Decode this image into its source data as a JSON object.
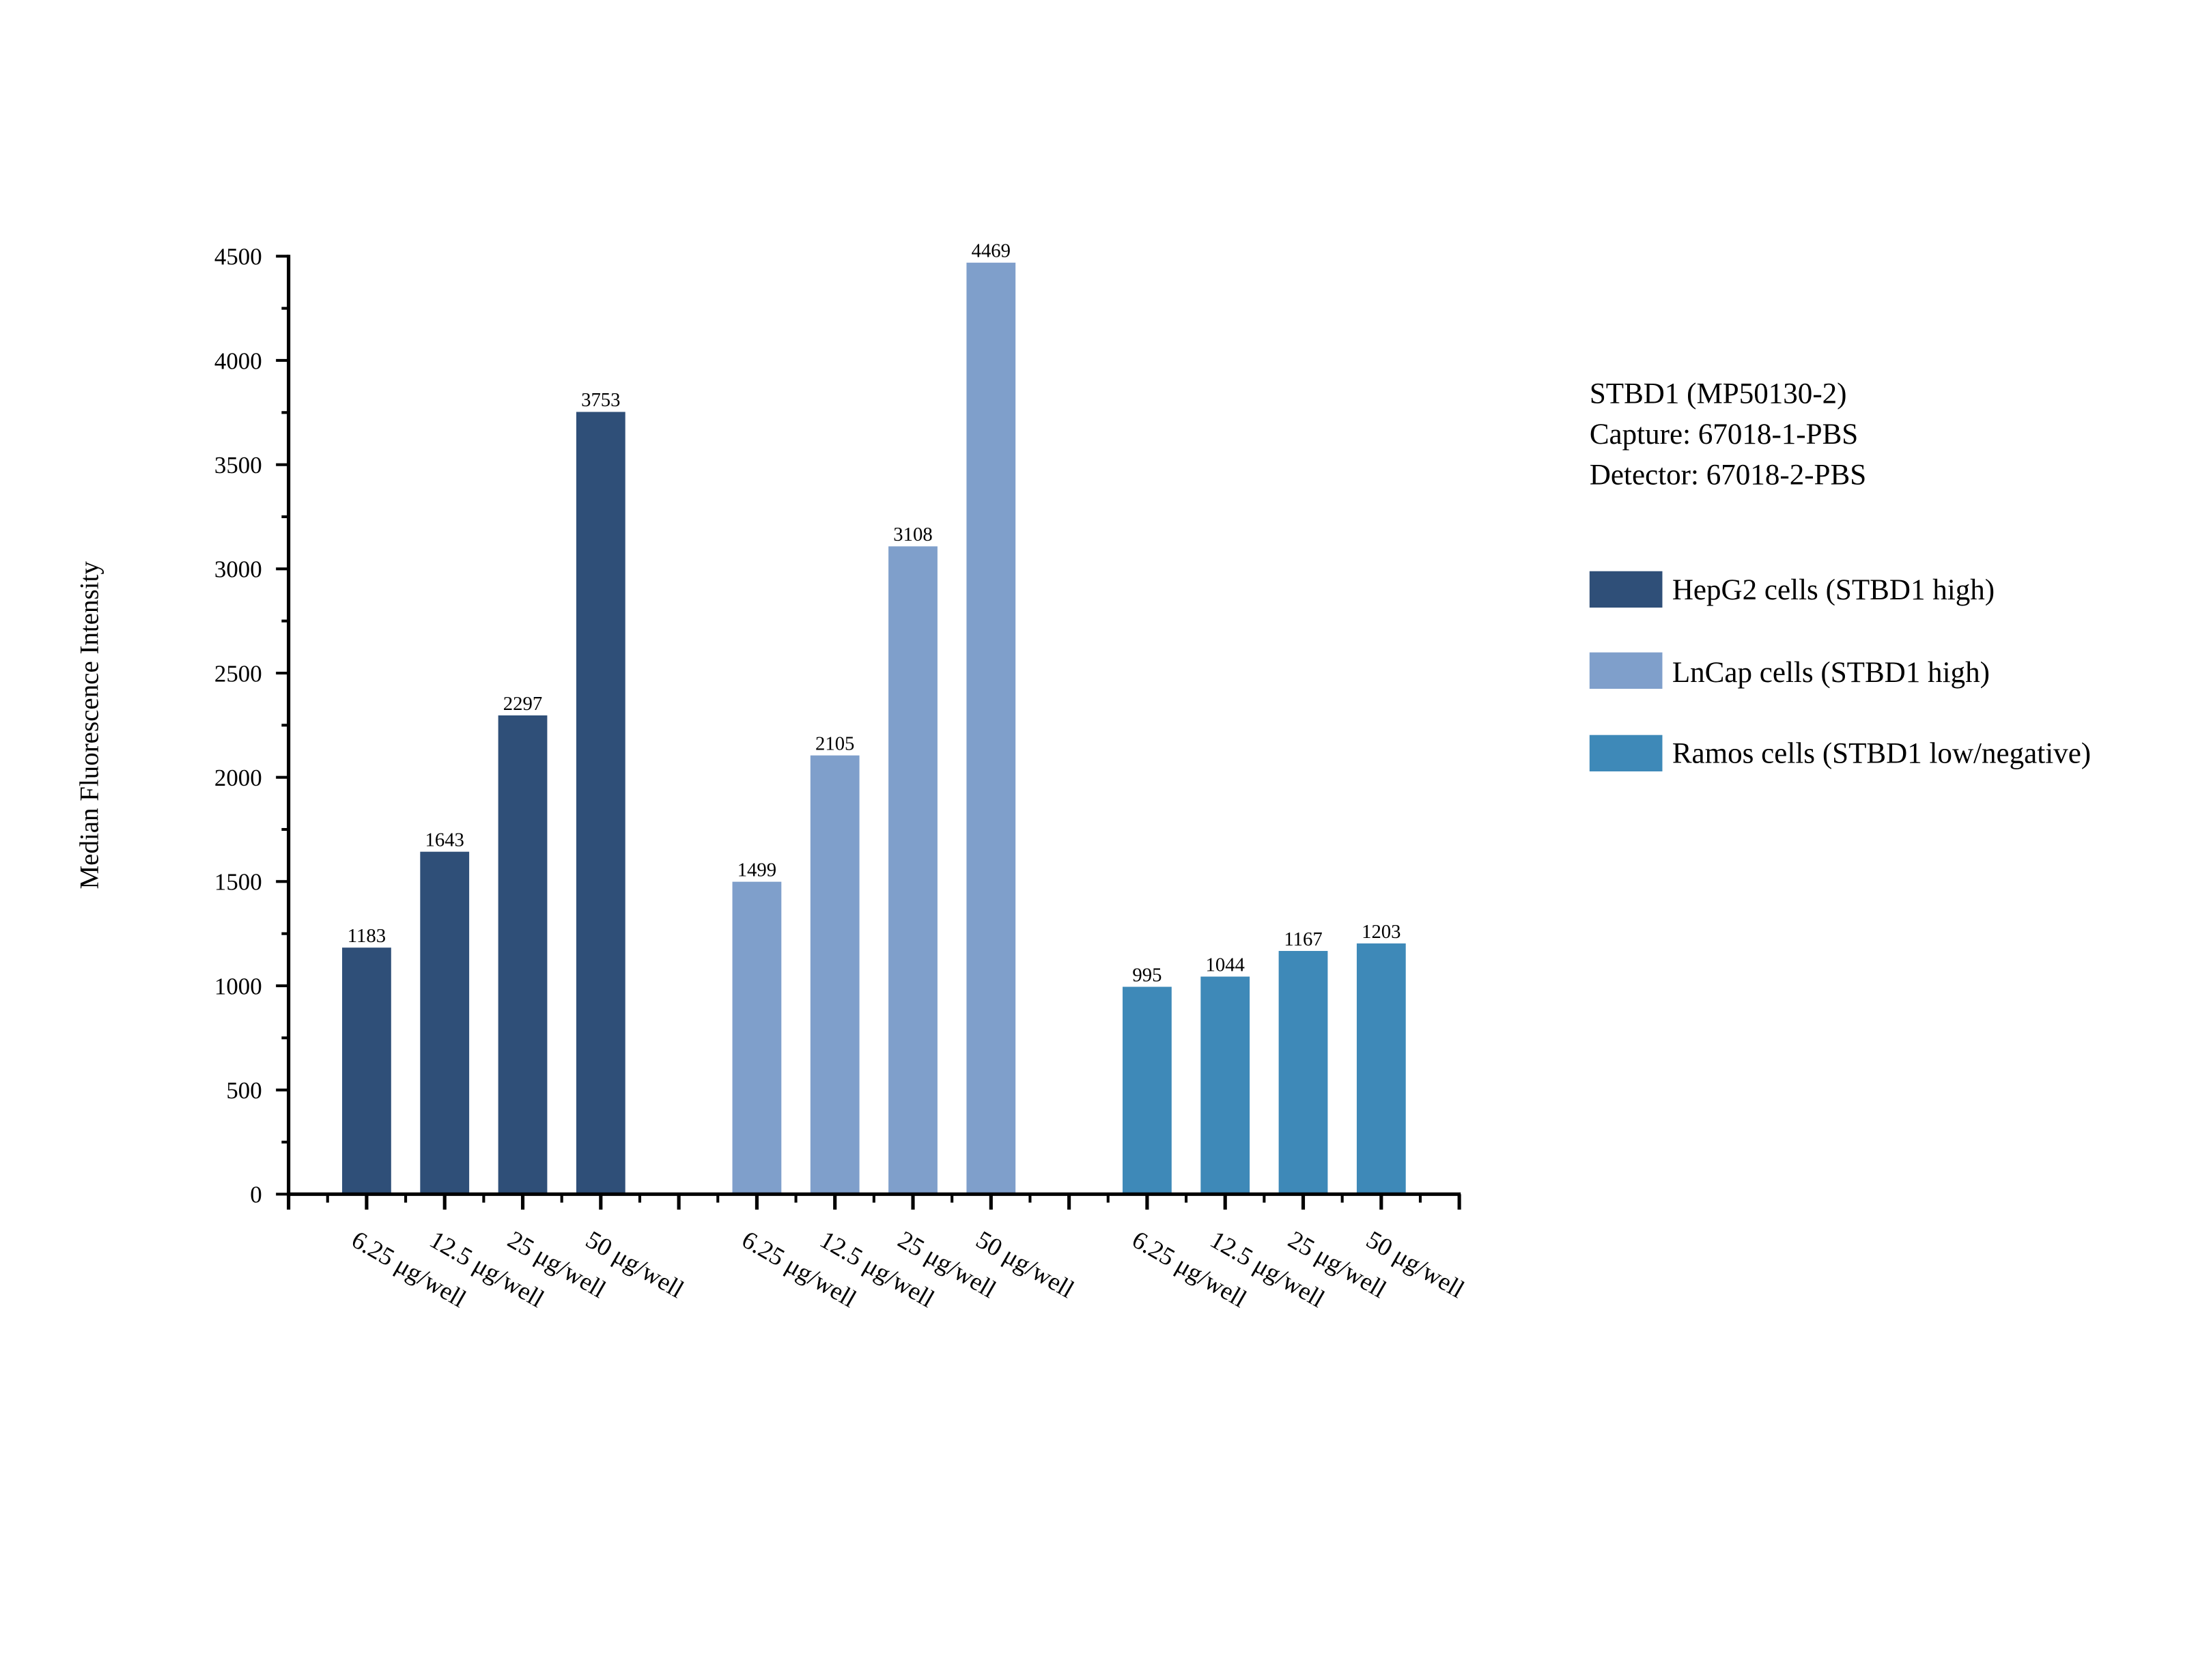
{
  "chart_data": {
    "type": "bar",
    "title": "",
    "xlabel": "",
    "ylabel": "Median Fluorescence Intensity",
    "ylim": [
      0,
      4500
    ],
    "yticks": [
      "0",
      "500",
      "1000",
      "1500",
      "2000",
      "2500",
      "3000",
      "3500",
      "4000",
      "4500"
    ],
    "grid": false,
    "legend_position": "right",
    "categories": [
      "6.25 μg/well",
      "12.5 μg/well",
      "25 μg/well",
      "50 μg/well"
    ],
    "series": [
      {
        "name": "HepG2 cells (STBD1 high)",
        "color": "#2f4f78",
        "values": [
          1183,
          1643,
          2297,
          3753
        ],
        "labels": [
          "1183",
          "1643",
          "2297",
          "3753"
        ]
      },
      {
        "name": "LnCap cells (STBD1 high)",
        "color": "#7f9fcb",
        "values": [
          1499,
          2105,
          3108,
          4469
        ],
        "labels": [
          "1499",
          "2105",
          "3108",
          "4469"
        ]
      },
      {
        "name": "Ramos cells (STBD1 low/negative)",
        "color": "#3e89b8",
        "values": [
          995,
          1044,
          1167,
          1203
        ],
        "labels": [
          "995",
          "1044",
          "1167",
          "1203"
        ]
      }
    ],
    "annotations": [
      "STBD1 (MP50130-2)",
      "Capture: 67018-1-PBS",
      "Detector: 67018-2-PBS"
    ]
  }
}
